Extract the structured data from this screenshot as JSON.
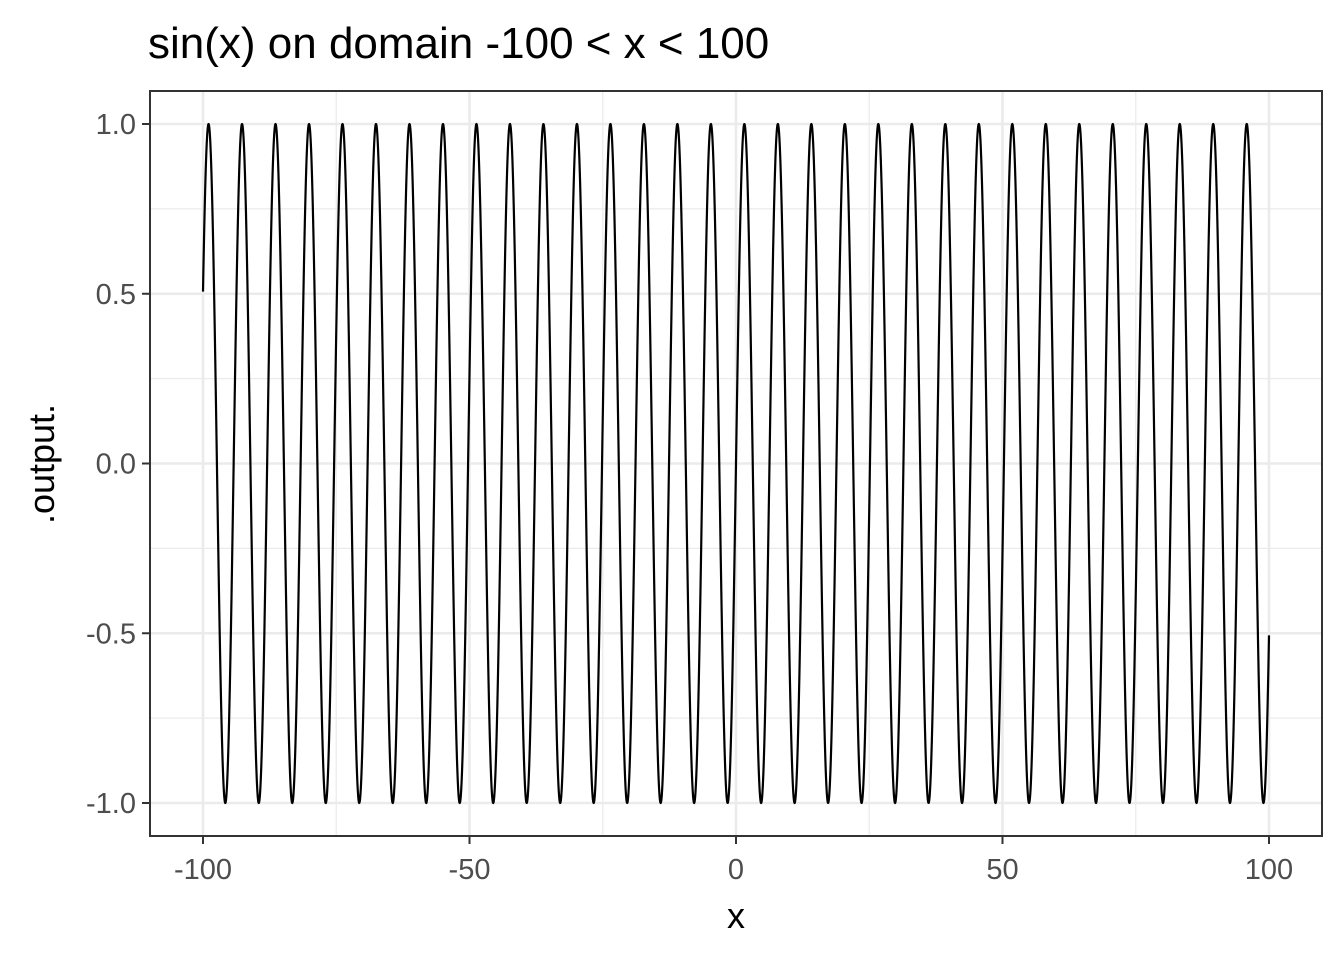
{
  "chart_data": {
    "type": "line",
    "title": "sin(x) on domain -100 < x < 100",
    "xlabel": "x",
    "ylabel": ".output.",
    "function": "sin(x)",
    "xlim": [
      -100,
      100
    ],
    "ylim": [
      -1,
      1
    ],
    "x_ticks": [
      -100,
      -50,
      0,
      50,
      100
    ],
    "x_tick_labels": [
      "-100",
      "-50",
      "0",
      "50",
      "100"
    ],
    "y_ticks": [
      -1,
      -0.5,
      0,
      0.5,
      1
    ],
    "y_tick_labels": [
      "-1.0",
      "-0.5",
      "0.0",
      "0.5",
      "1.0"
    ],
    "grid": true,
    "legend": "none",
    "series": [
      {
        "color": "#000000",
        "x": [
          -100,
          -75,
          -50,
          -25,
          0,
          25,
          50,
          75,
          100
        ],
        "y": [
          0.506,
          0.388,
          0.262,
          0.132,
          0,
          -0.132,
          -0.262,
          -0.388,
          -0.506
        ]
      }
    ]
  }
}
